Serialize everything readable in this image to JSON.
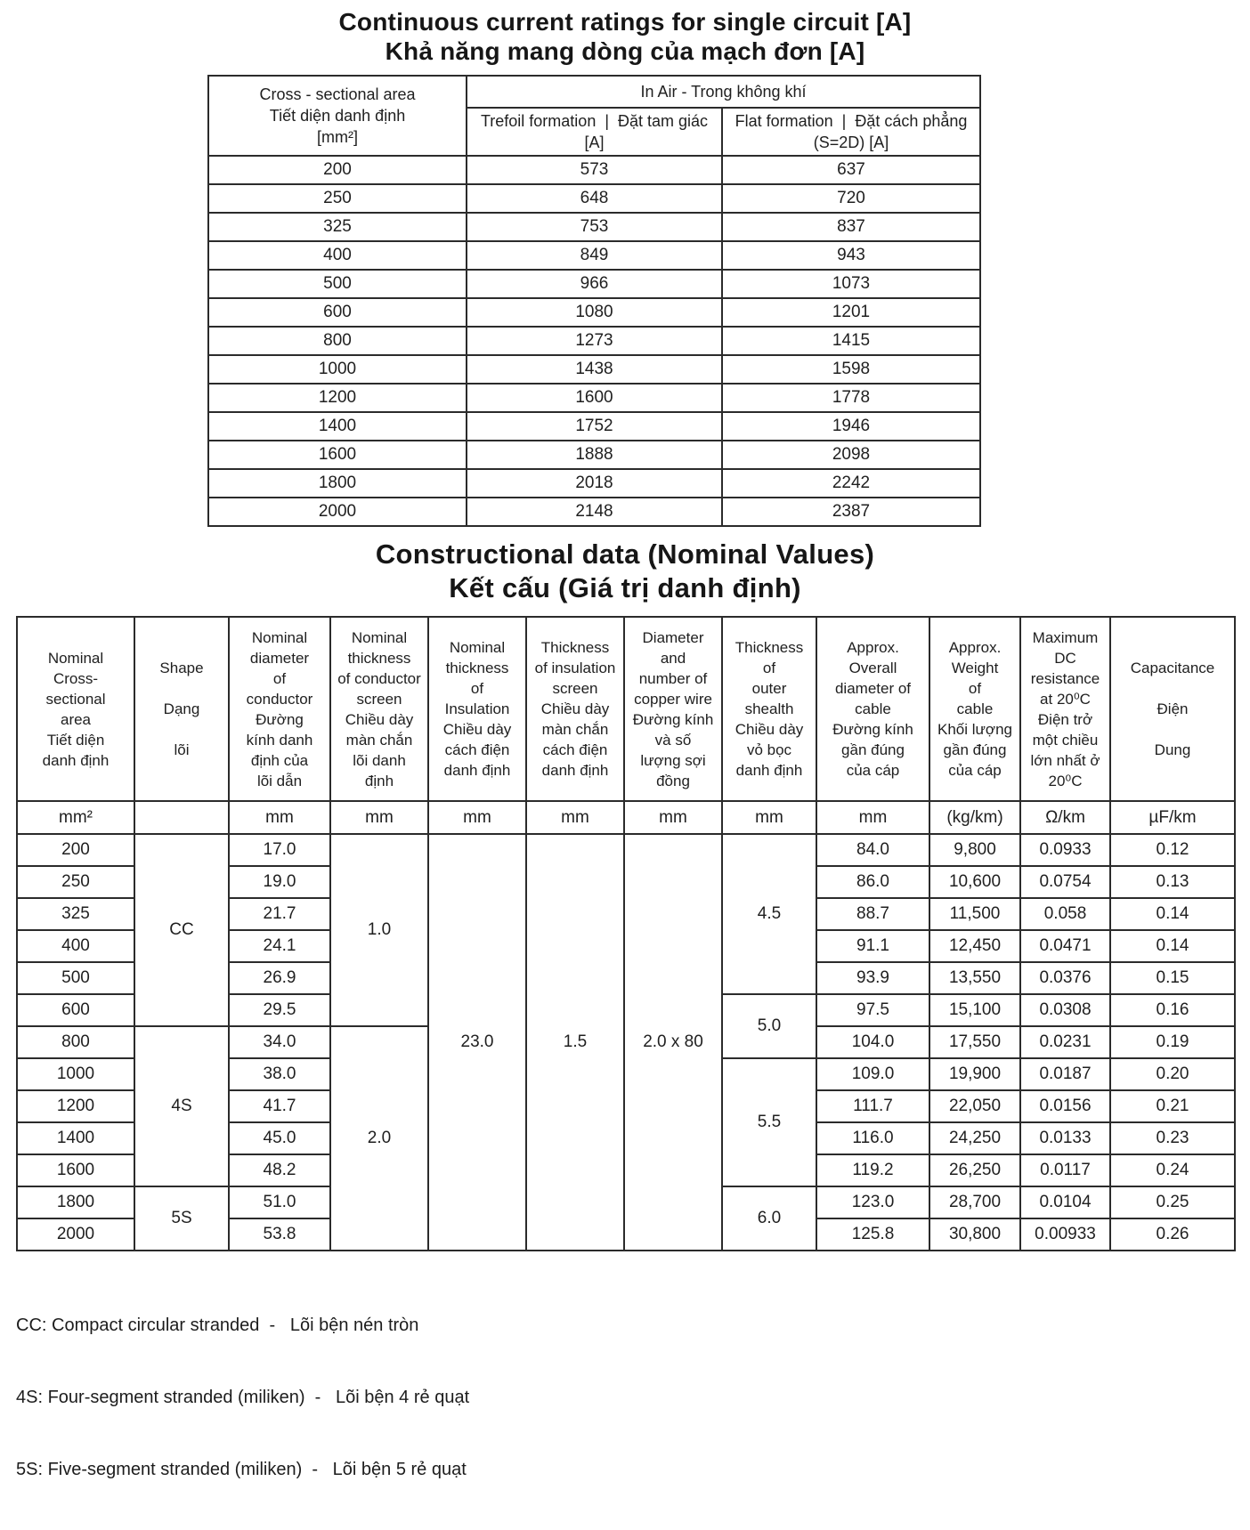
{
  "titles": {
    "current_en": "Continuous current ratings for single circuit [A]",
    "current_vi": "Khả năng mang dòng của mạch đơn [A]",
    "construction_en": "Constructional data (Nominal Values)",
    "construction_vi": "Kết cấu (Giá trị danh định)"
  },
  "current_table": {
    "area_header": "Cross - sectional area\nTiết diện danh định\n[mm²]",
    "in_air_header": "In Air - Trong không khí",
    "trefoil_header": "Trefoil formation  |  Đặt tam giác\n[A]",
    "flat_header": "Flat formation  |  Đặt cách phẳng\n(S=2D) [A]",
    "rows": [
      [
        "200",
        "573",
        "637"
      ],
      [
        "250",
        "648",
        "720"
      ],
      [
        "325",
        "753",
        "837"
      ],
      [
        "400",
        "849",
        "943"
      ],
      [
        "500",
        "966",
        "1073"
      ],
      [
        "600",
        "1080",
        "1201"
      ],
      [
        "800",
        "1273",
        "1415"
      ],
      [
        "1000",
        "1438",
        "1598"
      ],
      [
        "1200",
        "1600",
        "1778"
      ],
      [
        "1400",
        "1752",
        "1946"
      ],
      [
        "1600",
        "1888",
        "2098"
      ],
      [
        "1800",
        "2018",
        "2242"
      ],
      [
        "2000",
        "2148",
        "2387"
      ]
    ]
  },
  "construction_table": {
    "headers": [
      "Nominal\nCross-\nsectional\narea\nTiết diện\ndanh định",
      "Shape\n\nDạng\n\nlõi",
      "Nominal\ndiameter\nof\nconductor\nĐường\nkính danh\nđịnh của\nlõi dẫn",
      "Nominal\nthickness\nof conductor\nscreen\nChiều dày\nmàn chắn\nlõi danh\nđịnh",
      "Nominal\nthickness\nof\nInsulation\nChiều dày\ncách điện\ndanh định",
      "Thickness\nof insulation\nscreen\nChiều dày\nmàn chắn\ncách điện\ndanh định",
      "Diameter\nand\nnumber of\ncopper wire\nĐường kính\nvà số\nlượng sợi\nđồng",
      "Thickness\nof\nouter\nshealth\nChiều dày\nvỏ bọc\ndanh định",
      "Approx.\nOverall\ndiameter of\ncable\nĐường kính\ngần đúng\ncủa cáp",
      "Approx.\nWeight\nof\ncable\nKhối lượng\ngần đúng\ncủa cáp",
      "Maximum\nDC\nresistance\nat 20⁰C\nĐiện trở\nmột chiều\nlớn nhất ở\n20⁰C",
      "Capacitance\n\nĐiện\n\nDung"
    ],
    "units": [
      "mm²",
      "",
      "mm",
      "mm",
      "mm",
      "mm",
      "mm",
      "mm",
      "mm",
      "(kg/km)",
      "Ω/km",
      "µF/km"
    ],
    "rows": [
      {
        "cells": [
          {
            "v": "200"
          },
          {
            "v": "CC",
            "rs": 6
          },
          {
            "v": "17.0"
          },
          {
            "v": "1.0",
            "rs": 6
          },
          {
            "v": "23.0",
            "rs": 13
          },
          {
            "v": "1.5",
            "rs": 13
          },
          {
            "v": "2.0 x 80",
            "rs": 13
          },
          {
            "v": "4.5",
            "rs": 5
          },
          {
            "v": "84.0"
          },
          {
            "v": "9,800"
          },
          {
            "v": "0.0933"
          },
          {
            "v": "0.12"
          }
        ]
      },
      {
        "cells": [
          {
            "v": "250"
          },
          {
            "v": "19.0"
          },
          {
            "v": "86.0"
          },
          {
            "v": "10,600"
          },
          {
            "v": "0.0754"
          },
          {
            "v": "0.13"
          }
        ]
      },
      {
        "cells": [
          {
            "v": "325"
          },
          {
            "v": "21.7"
          },
          {
            "v": "88.7"
          },
          {
            "v": "11,500"
          },
          {
            "v": "0.058"
          },
          {
            "v": "0.14"
          }
        ]
      },
      {
        "cells": [
          {
            "v": "400"
          },
          {
            "v": "24.1"
          },
          {
            "v": "91.1"
          },
          {
            "v": "12,450"
          },
          {
            "v": "0.0471"
          },
          {
            "v": "0.14"
          }
        ]
      },
      {
        "cells": [
          {
            "v": "500"
          },
          {
            "v": "26.9"
          },
          {
            "v": "93.9"
          },
          {
            "v": "13,550"
          },
          {
            "v": "0.0376"
          },
          {
            "v": "0.15"
          }
        ]
      },
      {
        "cells": [
          {
            "v": "600"
          },
          {
            "v": "29.5"
          },
          {
            "v": "5.0",
            "rs": 2
          },
          {
            "v": "97.5"
          },
          {
            "v": "15,100"
          },
          {
            "v": "0.0308"
          },
          {
            "v": "0.16"
          }
        ]
      },
      {
        "cells": [
          {
            "v": "800"
          },
          {
            "v": "4S",
            "rs": 5
          },
          {
            "v": "34.0"
          },
          {
            "v": "2.0",
            "rs": 7
          },
          {
            "v": "104.0"
          },
          {
            "v": "17,550"
          },
          {
            "v": "0.0231"
          },
          {
            "v": "0.19"
          }
        ]
      },
      {
        "cells": [
          {
            "v": "1000"
          },
          {
            "v": "38.0"
          },
          {
            "v": "5.5",
            "rs": 4
          },
          {
            "v": "109.0"
          },
          {
            "v": "19,900"
          },
          {
            "v": "0.0187"
          },
          {
            "v": "0.20"
          }
        ]
      },
      {
        "cells": [
          {
            "v": "1200"
          },
          {
            "v": "41.7"
          },
          {
            "v": "111.7"
          },
          {
            "v": "22,050"
          },
          {
            "v": "0.0156"
          },
          {
            "v": "0.21"
          }
        ]
      },
      {
        "cells": [
          {
            "v": "1400"
          },
          {
            "v": "45.0"
          },
          {
            "v": "116.0"
          },
          {
            "v": "24,250"
          },
          {
            "v": "0.0133"
          },
          {
            "v": "0.23"
          }
        ]
      },
      {
        "cells": [
          {
            "v": "1600"
          },
          {
            "v": "48.2"
          },
          {
            "v": "119.2"
          },
          {
            "v": "26,250"
          },
          {
            "v": "0.0117"
          },
          {
            "v": "0.24"
          }
        ]
      },
      {
        "cells": [
          {
            "v": "1800"
          },
          {
            "v": "5S",
            "rs": 2
          },
          {
            "v": "51.0"
          },
          {
            "v": "6.0",
            "rs": 2
          },
          {
            "v": "123.0"
          },
          {
            "v": "28,700"
          },
          {
            "v": "0.0104"
          },
          {
            "v": "0.25"
          }
        ]
      },
      {
        "cells": [
          {
            "v": "2000"
          },
          {
            "v": "53.8"
          },
          {
            "v": "125.8"
          },
          {
            "v": "30,800"
          },
          {
            "v": "0.00933"
          },
          {
            "v": "0.26"
          }
        ]
      }
    ]
  },
  "notes": [
    "CC: Compact circular stranded  -   Lõi bện nén tròn",
    "4S: Four-segment stranded (miliken)  -   Lõi bện 4 rẻ quạt",
    "5S: Five-segment stranded (miliken)  -   Lõi bện 5 rẻ quạt"
  ]
}
